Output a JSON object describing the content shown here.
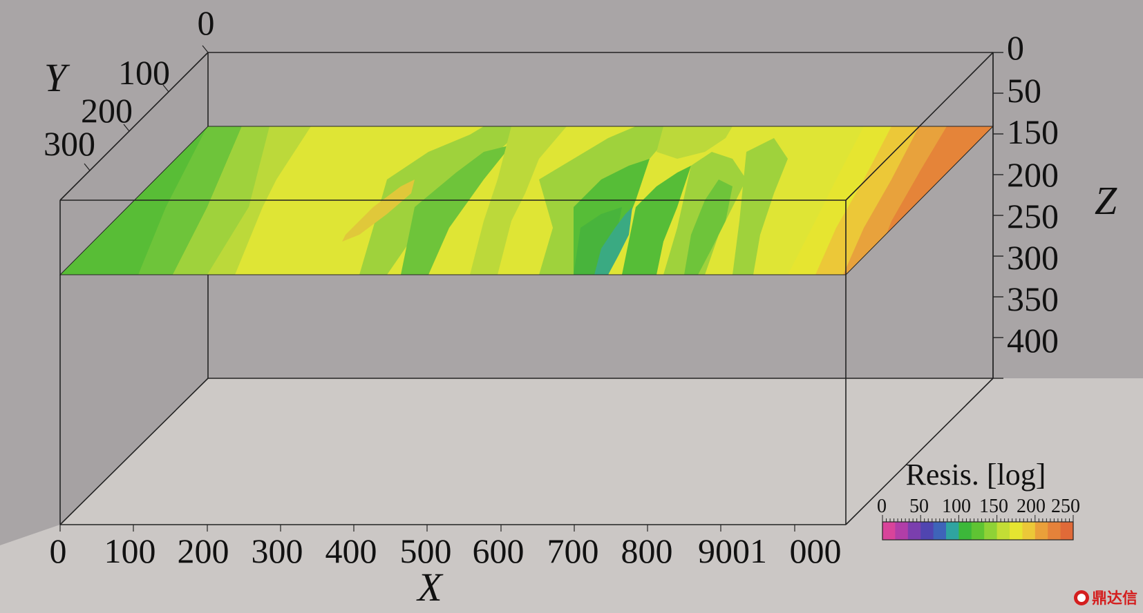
{
  "axes": {
    "x": {
      "title": "X",
      "tick_labels": [
        "0",
        "100",
        "200",
        "300",
        "400",
        "500",
        "600",
        "700",
        "800",
        "9001",
        "000"
      ]
    },
    "y": {
      "title": "Y",
      "tick_labels": [
        "0",
        "100",
        "200",
        "300"
      ]
    },
    "z": {
      "title": "Z",
      "tick_labels": [
        "0",
        "50",
        "150",
        "200",
        "250",
        "300",
        "350",
        "400"
      ]
    }
  },
  "colorbar": {
    "title": "Resis. [log]",
    "tick_labels": [
      "0",
      "50",
      "100",
      "150",
      "200",
      "250"
    ],
    "colors": [
      "#d8449a",
      "#b13ea8",
      "#7b3fae",
      "#5045b0",
      "#3e64b9",
      "#2fa4a0",
      "#3cb83a",
      "#5fc433",
      "#8fd236",
      "#c3dd35",
      "#e6e530",
      "#ecc838",
      "#eaa03a",
      "#e5823a",
      "#e06a38"
    ]
  },
  "slice": {
    "description_colors": {
      "base": "#dfe535",
      "light_green": "#9fd23c",
      "green": "#56bd37",
      "cyan": "#3aaa82",
      "orange": "#e8a23c",
      "deep_orange": "#e58439"
    }
  },
  "watermark": {
    "text": "鼎达信"
  }
}
